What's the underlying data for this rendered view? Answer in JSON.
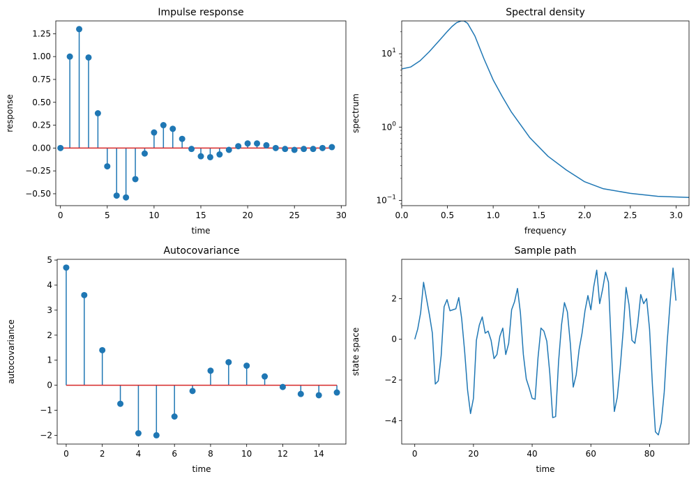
{
  "chart_data": [
    {
      "id": "impulse",
      "type": "stem",
      "title": "Impulse response",
      "xlabel": "time",
      "ylabel": "response",
      "xlim": [
        -0.5,
        30.5
      ],
      "ylim": [
        -0.63,
        1.39
      ],
      "x_ticks": [
        0,
        5,
        10,
        15,
        20,
        25,
        30
      ],
      "y_ticks": [
        -0.5,
        -0.25,
        0.0,
        0.25,
        0.5,
        0.75,
        1.0,
        1.25
      ],
      "x_tick_labels": [
        "0",
        "5",
        "10",
        "15",
        "20",
        "25",
        "30"
      ],
      "y_tick_labels": [
        "−0.50",
        "−0.25",
        "0.00",
        "0.25",
        "0.50",
        "0.75",
        "1.00",
        "1.25"
      ],
      "x": [
        0,
        1,
        2,
        3,
        4,
        5,
        6,
        7,
        8,
        9,
        10,
        11,
        12,
        13,
        14,
        15,
        16,
        17,
        18,
        19,
        20,
        21,
        22,
        23,
        24,
        25,
        26,
        27,
        28,
        29
      ],
      "y": [
        0.0,
        1.0,
        1.3,
        0.99,
        0.38,
        -0.2,
        -0.52,
        -0.54,
        -0.34,
        -0.06,
        0.17,
        0.25,
        0.21,
        0.1,
        -0.01,
        -0.09,
        -0.1,
        -0.07,
        -0.02,
        0.02,
        0.05,
        0.05,
        0.03,
        0.0,
        -0.01,
        -0.02,
        -0.01,
        -0.01,
        0.0,
        0.01
      ],
      "baseline": 0,
      "colors": {
        "stem": "#1f77b4",
        "baseline": "#d62728"
      }
    },
    {
      "id": "spectral",
      "type": "line",
      "title": "Spectral density",
      "xlabel": "frequency",
      "ylabel": "spectrum",
      "yscale": "log",
      "xlim": [
        0,
        3.1416
      ],
      "ylim": [
        0.085,
        28
      ],
      "x_ticks": [
        0.0,
        0.5,
        1.0,
        1.5,
        2.0,
        2.5,
        3.0
      ],
      "x_tick_labels": [
        "0.0",
        "0.5",
        "1.0",
        "1.5",
        "2.0",
        "2.5",
        "3.0"
      ],
      "y_ticks": [
        0.1,
        1,
        10
      ],
      "y_tick_labels": [
        {
          "base": "10",
          "exp": "−1"
        },
        {
          "base": "10",
          "exp": "0"
        },
        {
          "base": "10",
          "exp": "1"
        }
      ],
      "x": [
        0.0,
        0.1,
        0.2,
        0.3,
        0.4,
        0.5,
        0.55,
        0.6,
        0.65,
        0.68,
        0.72,
        0.8,
        0.9,
        1.0,
        1.1,
        1.2,
        1.4,
        1.6,
        1.8,
        2.0,
        2.2,
        2.5,
        2.8,
        3.1416
      ],
      "y": [
        6.2,
        6.6,
        8.0,
        10.6,
        14.6,
        20.2,
        23.5,
        26.5,
        28.0,
        28.0,
        26.0,
        17.5,
        8.5,
        4.4,
        2.6,
        1.6,
        0.72,
        0.4,
        0.26,
        0.18,
        0.145,
        0.125,
        0.114,
        0.11
      ],
      "colors": {
        "line": "#1f77b4"
      }
    },
    {
      "id": "autocov",
      "type": "stem",
      "title": "Autocovariance",
      "xlabel": "time",
      "ylabel": "autocovariance",
      "xlim": [
        -0.5,
        15.5
      ],
      "ylim": [
        -2.35,
        5.03
      ],
      "x_ticks": [
        0,
        2,
        4,
        6,
        8,
        10,
        12,
        14
      ],
      "x_tick_labels": [
        "0",
        "2",
        "4",
        "6",
        "8",
        "10",
        "12",
        "14"
      ],
      "y_ticks": [
        -2,
        -1,
        0,
        1,
        2,
        3,
        4,
        5
      ],
      "y_tick_labels": [
        "−2",
        "−1",
        "0",
        "1",
        "2",
        "3",
        "4",
        "5"
      ],
      "x": [
        0,
        1,
        2,
        3,
        4,
        5,
        6,
        7,
        8,
        9,
        10,
        11,
        12,
        13,
        14,
        15
      ],
      "y": [
        4.7,
        3.6,
        1.4,
        -0.74,
        -1.92,
        -2.0,
        -1.25,
        -0.23,
        0.58,
        0.92,
        0.78,
        0.35,
        -0.07,
        -0.35,
        -0.4,
        -0.29
      ],
      "baseline": 0,
      "colors": {
        "stem": "#1f77b4",
        "baseline": "#d62728"
      }
    },
    {
      "id": "samplepath",
      "type": "line",
      "title": "Sample path",
      "xlabel": "time",
      "ylabel": "state space",
      "xlim": [
        -4.45,
        93.45
      ],
      "ylim": [
        -5.15,
        3.93
      ],
      "x_ticks": [
        0,
        20,
        40,
        60,
        80
      ],
      "x_tick_labels": [
        "0",
        "20",
        "40",
        "60",
        "80"
      ],
      "y_ticks": [
        -4,
        -2,
        0,
        2
      ],
      "y_tick_labels": [
        "−4",
        "−2",
        "0",
        "2"
      ],
      "x": [
        0,
        1,
        2,
        3,
        4,
        5,
        6,
        7,
        8,
        9,
        10,
        11,
        12,
        13,
        14,
        15,
        16,
        17,
        18,
        19,
        20,
        21,
        22,
        23,
        24,
        25,
        26,
        27,
        28,
        29,
        30,
        31,
        32,
        33,
        34,
        35,
        36,
        37,
        38,
        39,
        40,
        41,
        42,
        43,
        44,
        45,
        46,
        47,
        48,
        49,
        50,
        51,
        52,
        53,
        54,
        55,
        56,
        57,
        58,
        59,
        60,
        61,
        62,
        63,
        64,
        65,
        66,
        67,
        68,
        69,
        70,
        71,
        72,
        73,
        74,
        75,
        76,
        77,
        78,
        79,
        80,
        81,
        82,
        83,
        84,
        85,
        86,
        87,
        88,
        89
      ],
      "y": [
        0.0,
        0.5,
        1.3,
        2.8,
        2.0,
        1.2,
        0.3,
        -2.2,
        -2.05,
        -0.8,
        1.6,
        1.95,
        1.4,
        1.45,
        1.5,
        2.05,
        1.0,
        -0.6,
        -2.5,
        -3.65,
        -2.9,
        -0.05,
        0.7,
        1.1,
        0.3,
        0.4,
        -0.05,
        -0.95,
        -0.75,
        0.15,
        0.55,
        -0.75,
        -0.2,
        1.45,
        1.85,
        2.5,
        1.3,
        -0.75,
        -1.95,
        -2.4,
        -2.9,
        -2.95,
        -0.9,
        0.55,
        0.4,
        -0.1,
        -1.65,
        -3.85,
        -3.8,
        -1.1,
        0.7,
        1.8,
        1.35,
        -0.2,
        -2.35,
        -1.75,
        -0.5,
        0.3,
        1.4,
        2.15,
        1.45,
        2.6,
        3.4,
        1.75,
        2.45,
        3.3,
        2.8,
        -0.45,
        -3.55,
        -2.85,
        -1.4,
        0.4,
        2.55,
        1.7,
        -0.05,
        -0.2,
        0.8,
        2.2,
        1.75,
        2.0,
        0.5,
        -2.3,
        -4.55,
        -4.7,
        -4.1,
        -2.6,
        -0.15,
        1.8,
        3.5,
        1.9
      ],
      "colors": {
        "line": "#1f77b4"
      }
    }
  ]
}
